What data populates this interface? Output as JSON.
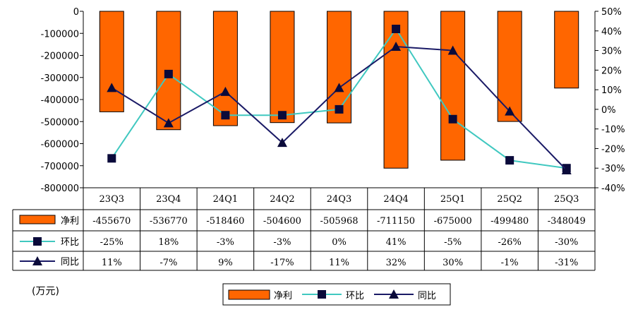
{
  "chart_data": {
    "type": "bar",
    "categories": [
      "23Q3",
      "23Q4",
      "24Q1",
      "24Q2",
      "24Q3",
      "24Q4",
      "25Q1",
      "25Q2",
      "25Q3"
    ],
    "series": [
      {
        "name": "净利",
        "kind": "bar",
        "axis": "left",
        "color": "#ff6600",
        "values": [
          -455670,
          -536770,
          -518460,
          -504600,
          -505968,
          -711150,
          -675000,
          -499480,
          -348049
        ],
        "labels": [
          "-455670",
          "-536770",
          "-518460",
          "-504600",
          "-505968",
          "-711150",
          "-675000",
          "-499480",
          "-348049"
        ]
      },
      {
        "name": "环比",
        "kind": "line",
        "axis": "right",
        "color": "#40c8c0",
        "marker": "square",
        "values": [
          -25,
          18,
          -3,
          -3,
          0,
          41,
          -5,
          -26,
          -30
        ],
        "labels": [
          "-25%",
          "18%",
          "-3%",
          "-3%",
          "0%",
          "41%",
          "-5%",
          "-26%",
          "-30%"
        ]
      },
      {
        "name": "同比",
        "kind": "line",
        "axis": "right",
        "color": "#1a1a66",
        "marker": "triangle",
        "values": [
          11,
          -7,
          9,
          -17,
          11,
          32,
          30,
          -1,
          -31
        ],
        "labels": [
          "11%",
          "-7%",
          "9%",
          "-17%",
          "11%",
          "32%",
          "30%",
          "-1%",
          "-31%"
        ]
      }
    ],
    "ylim_left": [
      -800000,
      0
    ],
    "yticks_left": [
      "0",
      "-100000",
      "-200000",
      "-300000",
      "-400000",
      "-500000",
      "-600000",
      "-700000",
      "-800000"
    ],
    "ylim_right": [
      -40,
      50
    ],
    "yticks_right": [
      "50%",
      "40%",
      "30%",
      "20%",
      "10%",
      "0%",
      "-10%",
      "-20%",
      "-30%",
      "-40%"
    ],
    "unit_label": "(万元)",
    "legend": [
      "净利",
      "环比",
      "同比"
    ],
    "legend_position": "bottom",
    "grid": false
  }
}
